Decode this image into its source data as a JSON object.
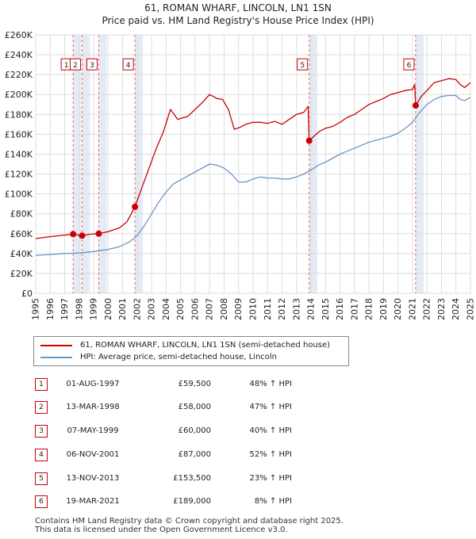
{
  "chart_data": {
    "type": "line",
    "title": "61, ROMAN WHARF, LINCOLN, LN1 1SN",
    "subtitle": "Price paid vs. HM Land Registry's House Price Index (HPI)",
    "xlim": [
      1995,
      2025
    ],
    "ylim": [
      0,
      260000
    ],
    "y_ticks": [
      0,
      20000,
      40000,
      60000,
      80000,
      100000,
      120000,
      140000,
      160000,
      180000,
      200000,
      220000,
      240000,
      260000
    ],
    "y_tick_labels": [
      "£0",
      "£20K",
      "£40K",
      "£60K",
      "£80K",
      "£100K",
      "£120K",
      "£140K",
      "£160K",
      "£180K",
      "£200K",
      "£220K",
      "£240K",
      "£260K"
    ],
    "x_ticks": [
      1995,
      1996,
      1997,
      1998,
      1999,
      2000,
      2001,
      2002,
      2003,
      2004,
      2005,
      2006,
      2007,
      2008,
      2009,
      2010,
      2011,
      2012,
      2013,
      2014,
      2015,
      2016,
      2017,
      2018,
      2019,
      2020,
      2021,
      2022,
      2023,
      2024,
      2025
    ],
    "x_tick_labels": [
      "1995",
      "1996",
      "1997",
      "1998",
      "1999",
      "2000",
      "2001",
      "2002",
      "2003",
      "2004",
      "2005",
      "2006",
      "2007",
      "2008",
      "2009",
      "2010",
      "2011",
      "2012",
      "2013",
      "2014",
      "2015",
      "2016",
      "2017",
      "2018",
      "2019",
      "2020",
      "2021",
      "2022",
      "2023",
      "2024",
      "2025"
    ],
    "grid": true,
    "series": [
      {
        "name": "61, ROMAN WHARF, LINCOLN, LN1 1SN (semi-detached house)",
        "color": "#cc0000",
        "x": [
          1995.0,
          1996.0,
          1997.0,
          1997.58,
          1998.2,
          1998.8,
          1999.35,
          2000.0,
          2000.8,
          2001.3,
          2001.85,
          2002.3,
          2002.8,
          2003.3,
          2003.8,
          2004.3,
          2004.8,
          2005.5,
          2006.0,
          2006.5,
          2007.0,
          2007.5,
          2007.9,
          2008.3,
          2008.7,
          2009.1,
          2009.5,
          2010.0,
          2010.5,
          2011.0,
          2011.5,
          2012.0,
          2012.5,
          2013.0,
          2013.5,
          2013.8,
          2013.87,
          2014.2,
          2014.6,
          2015.0,
          2015.5,
          2016.0,
          2016.5,
          2017.0,
          2017.5,
          2018.0,
          2018.5,
          2019.0,
          2019.5,
          2020.0,
          2020.5,
          2021.0,
          2021.15,
          2021.22,
          2021.6,
          2022.0,
          2022.5,
          2023.0,
          2023.5,
          2024.0,
          2024.3,
          2024.6,
          2025.0
        ],
        "y": [
          55000,
          57000,
          58500,
          59500,
          58000,
          59500,
          60000,
          62000,
          66000,
          72000,
          87000,
          105000,
          125000,
          145000,
          162000,
          185000,
          175000,
          178000,
          185000,
          192000,
          200000,
          196000,
          195000,
          185000,
          165000,
          167000,
          170000,
          172000,
          172000,
          171000,
          173000,
          170000,
          175000,
          180000,
          182000,
          188000,
          153500,
          158000,
          163000,
          166000,
          168000,
          172000,
          177000,
          180000,
          185000,
          190000,
          193000,
          196000,
          200000,
          202000,
          204000,
          205000,
          210000,
          189000,
          198000,
          204000,
          212000,
          214000,
          216000,
          215000,
          210000,
          207000,
          212000
        ]
      },
      {
        "name": "HPI: Average price, semi-detached house, Lincoln",
        "color": "#6a96c8",
        "x": [
          1995.0,
          1996.0,
          1997.0,
          1998.0,
          1999.0,
          2000.0,
          2000.8,
          2001.5,
          2002.0,
          2002.5,
          2003.0,
          2003.5,
          2004.0,
          2004.5,
          2005.0,
          2005.5,
          2006.0,
          2006.5,
          2007.0,
          2007.5,
          2008.0,
          2008.5,
          2009.0,
          2009.5,
          2010.0,
          2010.5,
          2011.0,
          2011.5,
          2012.0,
          2012.5,
          2013.0,
          2013.5,
          2014.0,
          2014.5,
          2015.0,
          2015.5,
          2016.0,
          2016.5,
          2017.0,
          2017.5,
          2018.0,
          2018.5,
          2019.0,
          2019.5,
          2020.0,
          2020.5,
          2021.0,
          2021.5,
          2022.0,
          2022.5,
          2023.0,
          2023.5,
          2024.0,
          2024.3,
          2024.6,
          2025.0
        ],
        "y": [
          38000,
          39000,
          40000,
          40500,
          42000,
          44000,
          47000,
          52000,
          58000,
          68000,
          80000,
          92000,
          102000,
          110000,
          114000,
          118000,
          122000,
          126000,
          130000,
          129000,
          126000,
          120000,
          112000,
          112000,
          115000,
          117000,
          116000,
          116000,
          115000,
          115000,
          117000,
          120000,
          124000,
          129000,
          132000,
          136000,
          140000,
          143000,
          146000,
          149000,
          152000,
          154000,
          156000,
          158000,
          161000,
          166000,
          172000,
          182000,
          190000,
          195000,
          198000,
          199000,
          199000,
          195000,
          194000,
          197000
        ]
      }
    ],
    "sales": [
      {
        "label": "1",
        "x": 1997.58,
        "y": 59500
      },
      {
        "label": "2",
        "x": 1998.2,
        "y": 58000
      },
      {
        "label": "3",
        "x": 1999.35,
        "y": 60000
      },
      {
        "label": "4",
        "x": 2001.85,
        "y": 87000
      },
      {
        "label": "5",
        "x": 2013.87,
        "y": 153500
      },
      {
        "label": "6",
        "x": 2021.22,
        "y": 189000
      }
    ]
  },
  "legend": {
    "red_label": "61, ROMAN WHARF, LINCOLN, LN1 1SN (semi-detached house)",
    "blue_label": "HPI: Average price, semi-detached house, Lincoln"
  },
  "sales_table": [
    {
      "num": "1",
      "date": "01-AUG-1997",
      "price": "£59,500",
      "hpi": "48% ↑ HPI"
    },
    {
      "num": "2",
      "date": "13-MAR-1998",
      "price": "£58,000",
      "hpi": "47% ↑ HPI"
    },
    {
      "num": "3",
      "date": "07-MAY-1999",
      "price": "£60,000",
      "hpi": "40% ↑ HPI"
    },
    {
      "num": "4",
      "date": "06-NOV-2001",
      "price": "£87,000",
      "hpi": "52% ↑ HPI"
    },
    {
      "num": "5",
      "date": "13-NOV-2013",
      "price": "£153,500",
      "hpi": "23% ↑ HPI"
    },
    {
      "num": "6",
      "date": "19-MAR-2021",
      "price": "£189,000",
      "hpi": "8% ↑ HPI"
    }
  ],
  "footer": {
    "line1": "Contains HM Land Registry data © Crown copyright and database right 2025.",
    "line2": "This data is licensed under the Open Government Licence v3.0."
  }
}
